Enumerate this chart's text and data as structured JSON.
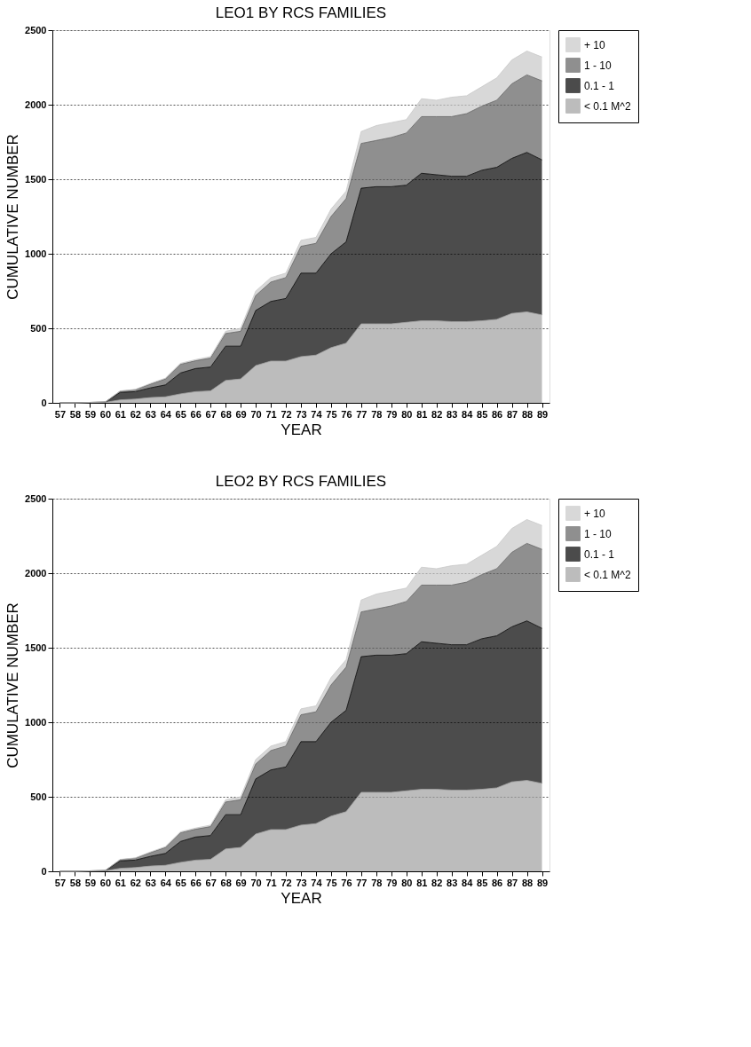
{
  "chart_data": [
    {
      "type": "area",
      "title": "LEO1 BY RCS FAMILIES",
      "xlabel": "YEAR",
      "ylabel": "CUMULATIVE NUMBER",
      "stacked": true,
      "categories": [
        "57",
        "58",
        "59",
        "60",
        "61",
        "62",
        "63",
        "64",
        "65",
        "66",
        "67",
        "68",
        "69",
        "70",
        "71",
        "72",
        "73",
        "74",
        "75",
        "76",
        "77",
        "78",
        "79",
        "80",
        "81",
        "82",
        "83",
        "84",
        "85",
        "86",
        "87",
        "88",
        "89"
      ],
      "series": [
        {
          "name": "< 0.1 M^2",
          "color": "#a0a0a0",
          "values": [
            0,
            0,
            2,
            3,
            20,
            25,
            35,
            40,
            60,
            75,
            80,
            150,
            160,
            250,
            280,
            280,
            310,
            320,
            370,
            400,
            530,
            530,
            530,
            540,
            550,
            550,
            545,
            545,
            550,
            560,
            600,
            610,
            590
          ]
        },
        {
          "name": "0.1 - 1",
          "color": "#000000",
          "values": [
            0,
            0,
            1,
            2,
            50,
            50,
            65,
            80,
            140,
            155,
            160,
            230,
            220,
            370,
            400,
            420,
            560,
            550,
            630,
            680,
            910,
            920,
            920,
            920,
            990,
            980,
            975,
            975,
            1010,
            1020,
            1040,
            1070,
            1040
          ]
        },
        {
          "name": "1 - 10",
          "color": "#606060",
          "values": [
            0,
            0,
            0,
            0,
            8,
            13,
            25,
            40,
            58,
            52,
            60,
            85,
            100,
            100,
            130,
            140,
            180,
            200,
            250,
            290,
            300,
            310,
            330,
            350,
            380,
            390,
            400,
            420,
            430,
            450,
            500,
            520,
            530
          ]
        },
        {
          "name": "+ 10",
          "color": "#c8c8c8",
          "values": [
            0,
            0,
            0,
            0,
            2,
            2,
            5,
            5,
            7,
            8,
            10,
            15,
            20,
            30,
            30,
            30,
            40,
            40,
            50,
            50,
            80,
            100,
            100,
            90,
            120,
            110,
            130,
            120,
            130,
            150,
            160,
            160,
            160
          ]
        }
      ],
      "ylim": [
        0,
        2500
      ],
      "yticks": [
        0,
        500,
        1000,
        1500,
        2000,
        2500
      ],
      "grid": "y",
      "legend": "top right"
    },
    {
      "type": "area",
      "title": "LEO2 BY RCS FAMILIES",
      "xlabel": "YEAR",
      "ylabel": "CUMULATIVE NUMBER",
      "stacked": true,
      "categories": [
        "57",
        "58",
        "59",
        "60",
        "61",
        "62",
        "63",
        "64",
        "65",
        "66",
        "67",
        "68",
        "69",
        "70",
        "71",
        "72",
        "73",
        "74",
        "75",
        "76",
        "77",
        "78",
        "79",
        "80",
        "81",
        "82",
        "83",
        "84",
        "85",
        "86",
        "87",
        "88",
        "89"
      ],
      "series": [
        {
          "name": "< 0.1 M^2",
          "color": "#a0a0a0",
          "values": [
            0,
            0,
            2,
            3,
            20,
            25,
            35,
            40,
            60,
            75,
            80,
            150,
            160,
            250,
            280,
            280,
            310,
            320,
            370,
            400,
            530,
            530,
            530,
            540,
            550,
            550,
            545,
            545,
            550,
            560,
            600,
            610,
            590
          ]
        },
        {
          "name": "0.1 - 1",
          "color": "#000000",
          "values": [
            0,
            0,
            1,
            2,
            50,
            50,
            65,
            80,
            140,
            155,
            160,
            230,
            220,
            370,
            400,
            420,
            560,
            550,
            630,
            680,
            910,
            920,
            920,
            920,
            990,
            980,
            975,
            975,
            1010,
            1020,
            1040,
            1070,
            1040
          ]
        },
        {
          "name": "1 - 10",
          "color": "#606060",
          "values": [
            0,
            0,
            0,
            0,
            8,
            13,
            25,
            40,
            58,
            52,
            60,
            85,
            100,
            100,
            130,
            140,
            180,
            200,
            250,
            290,
            300,
            310,
            330,
            350,
            380,
            390,
            400,
            420,
            430,
            450,
            500,
            520,
            530
          ]
        },
        {
          "name": "+ 10",
          "color": "#c8c8c8",
          "values": [
            0,
            0,
            0,
            0,
            2,
            2,
            5,
            5,
            7,
            8,
            10,
            15,
            20,
            30,
            30,
            30,
            40,
            40,
            50,
            50,
            80,
            100,
            100,
            90,
            120,
            110,
            130,
            120,
            130,
            150,
            160,
            160,
            160
          ]
        }
      ],
      "ylim": [
        0,
        2500
      ],
      "yticks": [
        0,
        500,
        1000,
        1500,
        2000,
        2500
      ],
      "grid": "y",
      "legend": "top right"
    }
  ]
}
